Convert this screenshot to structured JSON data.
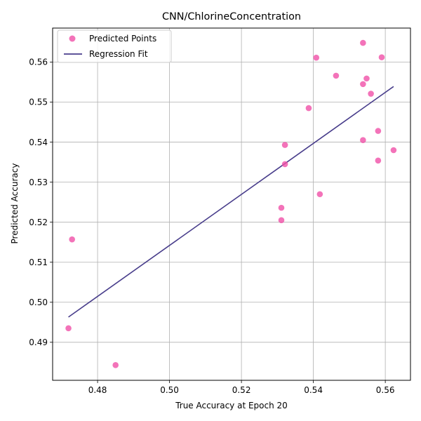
{
  "chart_data": {
    "type": "scatter",
    "title": "CNN/ChlorineConcentration",
    "xlabel": "True Accuracy at Epoch 20",
    "ylabel": "Predicted Accuracy",
    "xlim": [
      0.4675,
      0.567
    ],
    "ylim": [
      0.4805,
      0.5685
    ],
    "x_ticks": [
      0.48,
      0.5,
      0.52,
      0.54,
      0.56
    ],
    "x_tick_labels": [
      "0.48",
      "0.50",
      "0.52",
      "0.54",
      "0.56"
    ],
    "y_ticks": [
      0.49,
      0.5,
      0.51,
      0.52,
      0.53,
      0.54,
      0.55,
      0.56
    ],
    "y_tick_labels": [
      "0.49",
      "0.50",
      "0.51",
      "0.52",
      "0.53",
      "0.54",
      "0.55",
      "0.56"
    ],
    "grid": true,
    "legend_position": "top-left",
    "series": [
      {
        "name": "Predicted Points",
        "kind": "scatter",
        "color": "#f050a8",
        "points": [
          [
            0.4719,
            0.4935
          ],
          [
            0.4729,
            0.5157
          ],
          [
            0.485,
            0.4843
          ],
          [
            0.5311,
            0.5236
          ],
          [
            0.5311,
            0.5205
          ],
          [
            0.5321,
            0.5393
          ],
          [
            0.5321,
            0.5345
          ],
          [
            0.5387,
            0.5485
          ],
          [
            0.5408,
            0.5611
          ],
          [
            0.5418,
            0.527
          ],
          [
            0.5463,
            0.5566
          ],
          [
            0.5538,
            0.5648
          ],
          [
            0.5538,
            0.5545
          ],
          [
            0.5538,
            0.5405
          ],
          [
            0.5548,
            0.5559
          ],
          [
            0.556,
            0.5521
          ],
          [
            0.558,
            0.5428
          ],
          [
            0.558,
            0.5354
          ],
          [
            0.559,
            0.5612
          ],
          [
            0.5623,
            0.538
          ]
        ]
      },
      {
        "name": "Regression Fit",
        "kind": "line",
        "color": "#483d8b",
        "points": [
          [
            0.4719,
            0.4963
          ],
          [
            0.5623,
            0.5539
          ]
        ]
      }
    ]
  }
}
